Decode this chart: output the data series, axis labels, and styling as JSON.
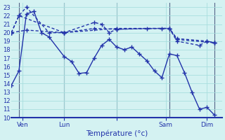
{
  "xlabel": "Température (°c)",
  "background_color": "#d4f2f2",
  "grid_color": "#a8dede",
  "line_color": "#2233aa",
  "xlim": [
    0,
    28
  ],
  "ylim": [
    10,
    23.5
  ],
  "yticks": [
    10,
    11,
    12,
    13,
    14,
    15,
    16,
    17,
    18,
    19,
    20,
    21,
    22,
    23
  ],
  "xtick_positions": [
    1.5,
    7,
    14,
    20.5,
    26
  ],
  "xtick_labels": [
    "Ven",
    "Lun",
    "",
    "Sam",
    "Dim"
  ],
  "day_line_positions": [
    1,
    7,
    14,
    21,
    27
  ],
  "line1_x": [
    0,
    1,
    2,
    3,
    4,
    5,
    7,
    8,
    9,
    10,
    11,
    12,
    13,
    14,
    15,
    16,
    17,
    18,
    19,
    20,
    21,
    22,
    23,
    24,
    25,
    26,
    27
  ],
  "line1_y": [
    13.8,
    15.5,
    22.2,
    22.5,
    20.0,
    19.5,
    17.2,
    16.6,
    15.2,
    15.3,
    17.0,
    18.5,
    19.2,
    18.3,
    18.0,
    18.3,
    17.5,
    16.7,
    15.5,
    14.7,
    17.5,
    17.3,
    15.3,
    13.0,
    11.0,
    11.2,
    10.3
  ],
  "line2_x": [
    0,
    1,
    2,
    5,
    7,
    11,
    12,
    13,
    14,
    20,
    21,
    22,
    25,
    26,
    27
  ],
  "line2_y": [
    20.0,
    22.0,
    23.0,
    20.0,
    20.0,
    21.2,
    21.0,
    20.0,
    20.4,
    20.5,
    20.5,
    19.0,
    18.5,
    19.0,
    18.8
  ],
  "line3_x": [
    0,
    1,
    7,
    14,
    21,
    22,
    27
  ],
  "line3_y": [
    20.0,
    22.0,
    20.0,
    20.5,
    20.5,
    19.2,
    18.8
  ],
  "line4_x": [
    0,
    2,
    7,
    11,
    14,
    18,
    21,
    22,
    26,
    27
  ],
  "line4_y": [
    20.0,
    20.3,
    20.0,
    20.5,
    20.4,
    20.5,
    20.5,
    19.3,
    19.0,
    18.8
  ]
}
